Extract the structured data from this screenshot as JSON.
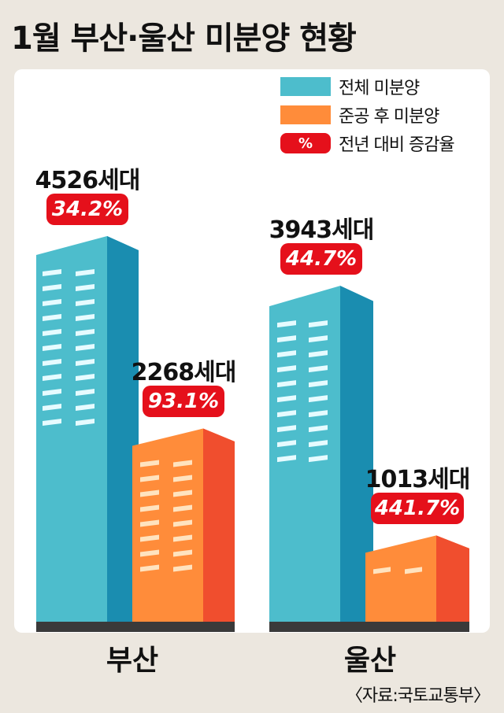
{
  "title": "1월 부산·울산 미분양 현황",
  "legend": {
    "total": "전체 미분양",
    "completed": "준공 후 미분양",
    "pct_symbol": "%",
    "pct_label": "전년 대비 증감율"
  },
  "colors": {
    "total": "#4dbdcc",
    "total_side": "#1a8db0",
    "completed": "#ff8c3a",
    "completed_side": "#f04e2e",
    "badge": "#e5101b",
    "base": "#3a3a3a"
  },
  "chart_data": {
    "type": "bar",
    "title": "1월 부산·울산 미분양 현황",
    "categories": [
      "부산",
      "울산"
    ],
    "series": [
      {
        "name": "전체 미분양",
        "values": [
          4526,
          3943
        ],
        "value_labels": [
          "4526세대",
          "3943세대"
        ],
        "pct_change_labels": [
          "34.2%",
          "44.7%"
        ]
      },
      {
        "name": "준공 후 미분양",
        "values": [
          2268,
          1013
        ],
        "value_labels": [
          "2268세대",
          "1013세대"
        ],
        "pct_change_labels": [
          "93.1%",
          "441.7%"
        ]
      }
    ],
    "xlabel": "",
    "ylabel": "",
    "legend_position": "top-right"
  },
  "source": "〈자료:국토교통부〉"
}
